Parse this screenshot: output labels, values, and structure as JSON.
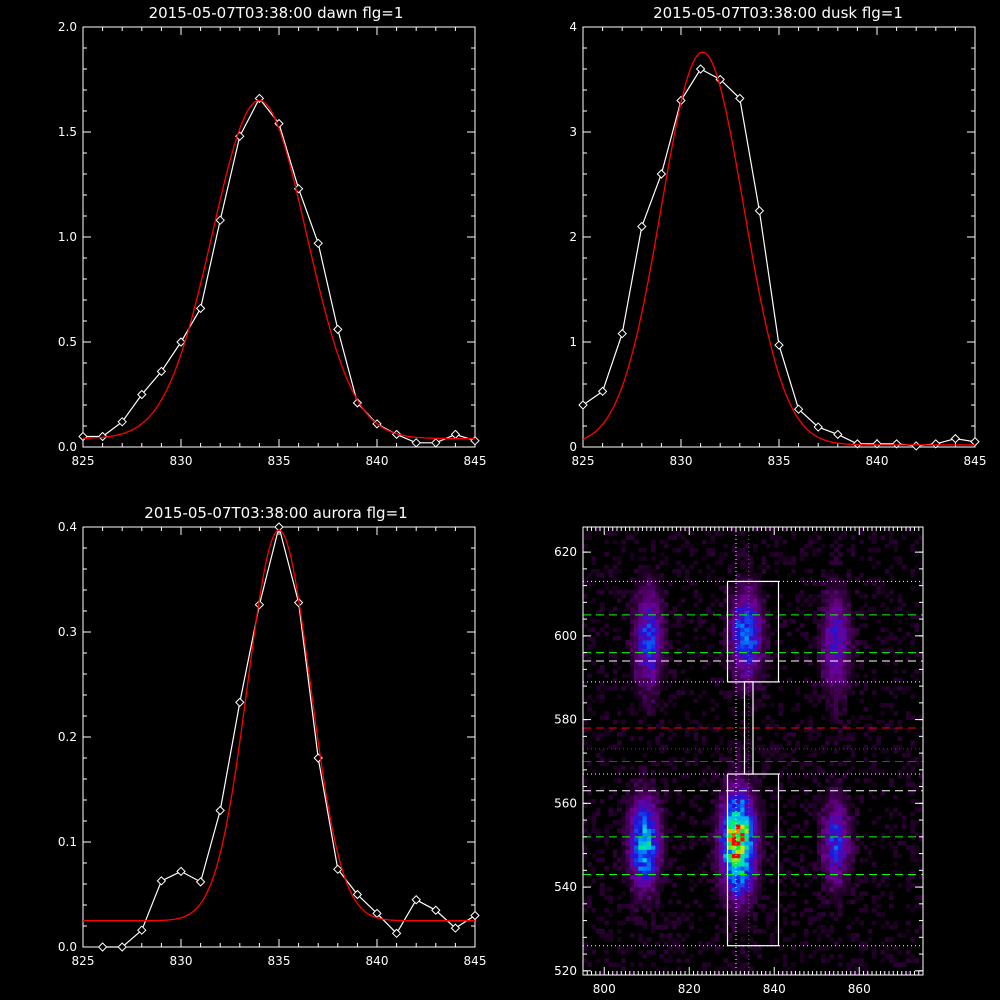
{
  "chart_data": [
    {
      "id": "dawn",
      "type": "line",
      "title": "2015-05-07T03:38:00 dawn flg=1",
      "xlim": [
        825,
        845
      ],
      "ylim": [
        0,
        2.0
      ],
      "xticks": [
        825,
        830,
        835,
        840,
        845
      ],
      "yticks": [
        0.0,
        0.5,
        1.0,
        1.5,
        2.0
      ],
      "xtick_labels": [
        "825",
        "830",
        "835",
        "840",
        "845"
      ],
      "ytick_labels": [
        "0.0",
        "0.5",
        "1.0",
        "1.5",
        "2.0"
      ],
      "series": [
        {
          "color": "#ffffff",
          "marker": "diamond",
          "x": [
            825,
            826,
            827,
            828,
            829,
            830,
            831,
            832,
            833,
            834,
            835,
            836,
            837,
            838,
            839,
            840,
            841,
            842,
            843,
            844,
            845
          ],
          "y": [
            0.05,
            0.05,
            0.12,
            0.25,
            0.36,
            0.5,
            0.66,
            1.08,
            1.48,
            1.66,
            1.54,
            1.23,
            0.97,
            0.56,
            0.21,
            0.11,
            0.06,
            0.02,
            0.02,
            0.06,
            0.03
          ]
        },
        {
          "color": "#ff0000",
          "fit": "gaussian",
          "amplitude": 1.61,
          "center": 834.0,
          "sigma": 2.4,
          "baseline": 0.04
        }
      ]
    },
    {
      "id": "dusk",
      "type": "line",
      "title": "2015-05-07T03:38:00 dusk flg=1",
      "xlim": [
        825,
        845
      ],
      "ylim": [
        0,
        4
      ],
      "xticks": [
        825,
        830,
        835,
        840,
        845
      ],
      "yticks": [
        0,
        1,
        2,
        3,
        4
      ],
      "xtick_labels": [
        "825",
        "830",
        "835",
        "840",
        "845"
      ],
      "ytick_labels": [
        "0",
        "1",
        "2",
        "3",
        "4"
      ],
      "series": [
        {
          "color": "#ffffff",
          "marker": "diamond",
          "x": [
            825,
            826,
            827,
            828,
            829,
            830,
            831,
            832,
            833,
            834,
            835,
            836,
            837,
            838,
            839,
            840,
            841,
            842,
            843,
            844,
            845
          ],
          "y": [
            0.4,
            0.53,
            1.08,
            2.1,
            2.6,
            3.3,
            3.6,
            3.5,
            3.32,
            2.25,
            0.97,
            0.36,
            0.19,
            0.12,
            0.03,
            0.03,
            0.03,
            0.01,
            0.03,
            0.08,
            0.05
          ]
        },
        {
          "color": "#ff0000",
          "fit": "gaussian",
          "amplitude": 3.74,
          "center": 831.1,
          "sigma": 2.1,
          "baseline": 0.02
        }
      ]
    },
    {
      "id": "aurora",
      "type": "line",
      "title": "2015-05-07T03:38:00 aurora flg=1",
      "xlim": [
        825,
        845
      ],
      "ylim": [
        0,
        0.4
      ],
      "xticks": [
        825,
        830,
        835,
        840,
        845
      ],
      "yticks": [
        0.0,
        0.1,
        0.2,
        0.3,
        0.4
      ],
      "xtick_labels": [
        "825",
        "830",
        "835",
        "840",
        "845"
      ],
      "ytick_labels": [
        "0.0",
        "0.1",
        "0.2",
        "0.3",
        "0.4"
      ],
      "series": [
        {
          "color": "#ffffff",
          "marker": "diamond",
          "x": [
            826,
            827,
            828,
            829,
            830,
            831,
            832,
            833,
            834,
            835,
            836,
            837,
            838,
            839,
            840,
            841,
            842,
            843,
            844,
            845
          ],
          "y": [
            0.0,
            0.0,
            0.016,
            0.063,
            0.072,
            0.062,
            0.13,
            0.233,
            0.326,
            0.4,
            0.328,
            0.18,
            0.074,
            0.05,
            0.032,
            0.013,
            0.045,
            0.035,
            0.018,
            0.03
          ]
        },
        {
          "color": "#ff0000",
          "fit": "gaussian",
          "amplitude": 0.372,
          "center": 835.0,
          "sigma": 1.6,
          "baseline": 0.025
        }
      ]
    },
    {
      "id": "image",
      "type": "heatmap",
      "xlim": [
        795,
        875
      ],
      "ylim": [
        519,
        626
      ],
      "xticks": [
        800,
        820,
        840,
        860
      ],
      "yticks": [
        520,
        540,
        560,
        580,
        600,
        620
      ],
      "xtick_labels": [
        "800",
        "820",
        "840",
        "860"
      ],
      "ytick_labels": [
        "520",
        "540",
        "560",
        "580",
        "600",
        "620"
      ],
      "blobs": [
        {
          "x": 810,
          "y": 599,
          "sx": 2.2,
          "sy": 8,
          "amp": 0.42
        },
        {
          "x": 833,
          "y": 600,
          "sx": 2.4,
          "sy": 7,
          "amp": 0.5
        },
        {
          "x": 854,
          "y": 598,
          "sx": 2.2,
          "sy": 8,
          "amp": 0.34
        },
        {
          "x": 809,
          "y": 550,
          "sx": 2.4,
          "sy": 7,
          "amp": 0.62
        },
        {
          "x": 831,
          "y": 550,
          "sx": 2.6,
          "sy": 8,
          "amp": 0.95
        },
        {
          "x": 854,
          "y": 550,
          "sx": 2.2,
          "sy": 7,
          "amp": 0.38
        }
      ],
      "boxes": [
        {
          "x0": 829,
          "x1": 841,
          "y0": 589,
          "y1": 613
        },
        {
          "x0": 829,
          "x1": 841,
          "y0": 526,
          "y1": 567
        },
        {
          "x0": 833,
          "x1": 835,
          "y0": 567,
          "y1": 589
        }
      ],
      "hlines": [
        {
          "y": 613,
          "color": "#ffffff",
          "style": "dotted"
        },
        {
          "y": 605,
          "color": "#00ff00",
          "style": "dashed"
        },
        {
          "y": 596,
          "color": "#00ff00",
          "style": "dashed"
        },
        {
          "y": 594,
          "color": "#ffffff",
          "style": "dashed"
        },
        {
          "y": 589,
          "color": "#ffffff",
          "style": "dotted"
        },
        {
          "y": 578,
          "color": "#ff0000",
          "style": "dashed"
        },
        {
          "y": 573,
          "color": "#ff0000",
          "style": "dotted"
        },
        {
          "y": 570,
          "color": "#ff0000",
          "style": "dashed"
        },
        {
          "y": 567,
          "color": "#ffffff",
          "style": "dotted"
        },
        {
          "y": 563,
          "color": "#ffffff",
          "style": "dashed"
        },
        {
          "y": 552,
          "color": "#00ff00",
          "style": "dashed"
        },
        {
          "y": 543,
          "color": "#00ff00",
          "style": "dashed"
        },
        {
          "y": 526,
          "color": "#ffffff",
          "style": "dotted"
        }
      ],
      "vlines": [
        {
          "x": 831,
          "color": "#ffffff",
          "style": "dotted"
        },
        {
          "x": 834,
          "color": "#ff00ff",
          "style": "dotted"
        }
      ]
    }
  ]
}
